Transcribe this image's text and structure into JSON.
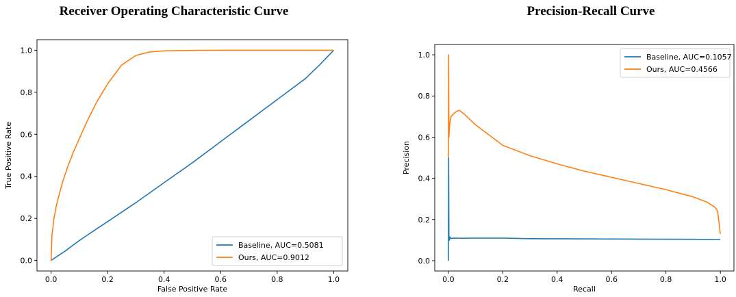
{
  "chart_data": [
    {
      "type": "line",
      "title": "Receiver Operating Characteristic Curve",
      "xlabel": "False Positive Rate",
      "ylabel": "True Positive Rate",
      "xlim": [
        -0.05,
        1.05
      ],
      "ylim": [
        -0.05,
        1.05
      ],
      "xticks": [
        "0.0",
        "0.2",
        "0.4",
        "0.6",
        "0.8",
        "1.0"
      ],
      "yticks": [
        "0.0",
        "0.2",
        "0.4",
        "0.6",
        "0.8",
        "1.0"
      ],
      "grid": false,
      "legend_position": "lower-right",
      "series": [
        {
          "name": "Baseline, AUC=0.5081",
          "color": "#1f77b4",
          "x": [
            0,
            0.05,
            0.1,
            0.15,
            0.2,
            0.3,
            0.4,
            0.5,
            0.6,
            0.7,
            0.8,
            0.9,
            0.95,
            1.0
          ],
          "y": [
            0,
            0.045,
            0.095,
            0.14,
            0.185,
            0.275,
            0.37,
            0.465,
            0.565,
            0.665,
            0.765,
            0.865,
            0.93,
            1.0
          ]
        },
        {
          "name": "Ours,  AUC=0.9012",
          "color": "#ff7f0e",
          "x": [
            0,
            0.003,
            0.01,
            0.02,
            0.04,
            0.06,
            0.08,
            0.1,
            0.13,
            0.16,
            0.2,
            0.25,
            0.3,
            0.35,
            0.4,
            0.5,
            0.6,
            0.8,
            1.0
          ],
          "y": [
            0,
            0.12,
            0.2,
            0.27,
            0.37,
            0.45,
            0.52,
            0.58,
            0.67,
            0.75,
            0.84,
            0.93,
            0.975,
            0.992,
            0.997,
            0.999,
            1.0,
            1.0,
            1.0
          ]
        }
      ]
    },
    {
      "type": "line",
      "title": "Precision-Recall Curve",
      "xlabel": "Recall",
      "ylabel": "Precision",
      "xlim": [
        -0.05,
        1.05
      ],
      "ylim": [
        -0.05,
        1.05
      ],
      "xticks": [
        "0.0",
        "0.2",
        "0.4",
        "0.6",
        "0.8",
        "1.0"
      ],
      "yticks": [
        "0.0",
        "0.2",
        "0.4",
        "0.6",
        "0.8",
        "1.0"
      ],
      "grid": false,
      "legend_position": "upper-right",
      "series": [
        {
          "name": "Baseline, AUC=0.1057",
          "color": "#1f77b4",
          "x": [
            0,
            0.001,
            0.002,
            0.004,
            0.006,
            0.01,
            0.02,
            0.05,
            0.1,
            0.2,
            0.3,
            0.5,
            0.7,
            0.9,
            1.0
          ],
          "y": [
            0.0,
            0.5,
            0.12,
            0.1,
            0.115,
            0.108,
            0.11,
            0.109,
            0.11,
            0.11,
            0.107,
            0.106,
            0.105,
            0.104,
            0.103
          ]
        },
        {
          "name": "Ours, AUC=0.4566",
          "color": "#ff7f0e",
          "x": [
            0,
            0.001,
            0.002,
            0.004,
            0.007,
            0.01,
            0.02,
            0.03,
            0.04,
            0.06,
            0.1,
            0.15,
            0.2,
            0.3,
            0.4,
            0.5,
            0.6,
            0.7,
            0.8,
            0.9,
            0.95,
            0.98,
            0.99,
            1.0
          ],
          "y": [
            0.5,
            1.0,
            0.6,
            0.65,
            0.68,
            0.7,
            0.715,
            0.725,
            0.73,
            0.71,
            0.66,
            0.61,
            0.56,
            0.51,
            0.47,
            0.435,
            0.405,
            0.375,
            0.345,
            0.31,
            0.285,
            0.26,
            0.24,
            0.13
          ]
        }
      ]
    }
  ]
}
